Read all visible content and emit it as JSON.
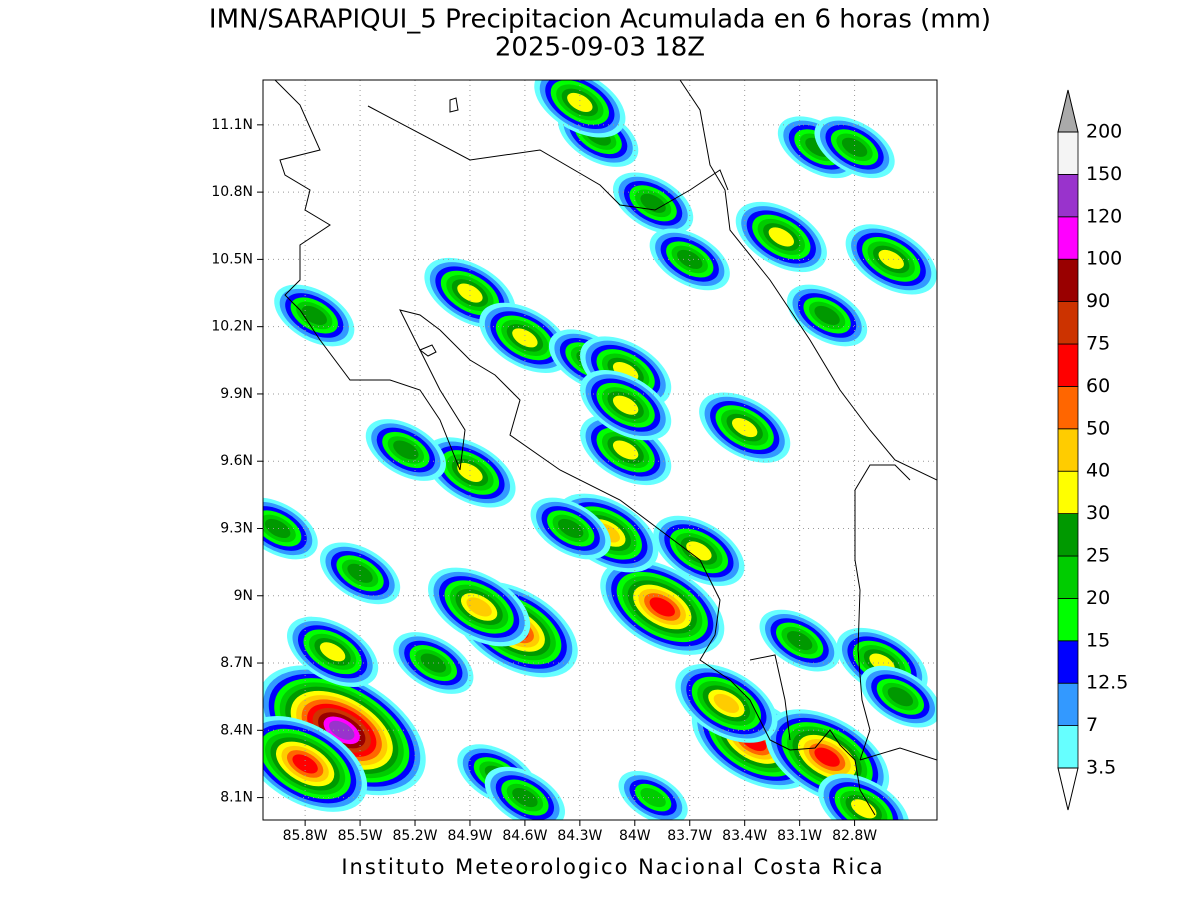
{
  "map": {
    "title": "IMN/SARAPIQUI_5 Precipitacion Acumulada en 6 horas (mm)",
    "subtitle": "2025-09-03 18Z",
    "footer": "Instituto Meteorologico Nacional Costa Rica",
    "lonlim": [
      -86.03,
      -82.35
    ],
    "latlim": [
      8.0,
      11.3
    ],
    "lonticks": [
      {
        "value": -85.8,
        "label": "85.8W"
      },
      {
        "value": -85.5,
        "label": "85.5W"
      },
      {
        "value": -85.2,
        "label": "85.2W"
      },
      {
        "value": -84.9,
        "label": "84.9W"
      },
      {
        "value": -84.6,
        "label": "84.6W"
      },
      {
        "value": -84.3,
        "label": "84.3W"
      },
      {
        "value": -84.0,
        "label": "84W"
      },
      {
        "value": -83.7,
        "label": "83.7W"
      },
      {
        "value": -83.4,
        "label": "83.4W"
      },
      {
        "value": -83.1,
        "label": "83.1W"
      },
      {
        "value": -82.8,
        "label": "82.8W"
      }
    ],
    "latticks": [
      {
        "value": 8.1,
        "label": "8.1N"
      },
      {
        "value": 8.4,
        "label": "8.4N"
      },
      {
        "value": 8.7,
        "label": "8.7N"
      },
      {
        "value": 9.0,
        "label": "9N"
      },
      {
        "value": 9.3,
        "label": "9.3N"
      },
      {
        "value": 9.6,
        "label": "9.6N"
      },
      {
        "value": 9.9,
        "label": "9.9N"
      },
      {
        "value": 10.2,
        "label": "10.2N"
      },
      {
        "value": 10.5,
        "label": "10.5N"
      },
      {
        "value": 10.8,
        "label": "10.8N"
      },
      {
        "value": 11.1,
        "label": "11.1N"
      }
    ],
    "grid": true,
    "colorbar": {
      "levels": [
        3.5,
        7,
        12.5,
        15,
        20,
        25,
        30,
        40,
        50,
        60,
        75,
        90,
        100,
        120,
        150,
        200
      ],
      "colors": [
        "#66ffff",
        "#3399ff",
        "#0000ff",
        "#00ff00",
        "#00cc00",
        "#009900",
        "#ffff00",
        "#ffcc00",
        "#ff6600",
        "#ff0000",
        "#cc3300",
        "#990000",
        "#ff00ff",
        "#9933cc",
        "#f4f4f4"
      ],
      "over_color": "#aaaaaa",
      "under_color": "#ffffff"
    },
    "cells": [
      {
        "lon": -85.6,
        "lat": 8.4,
        "max": 130
      },
      {
        "lon": -85.8,
        "lat": 8.25,
        "max": 65
      },
      {
        "lon": -84.65,
        "lat": 8.85,
        "max": 65
      },
      {
        "lon": -84.85,
        "lat": 8.95,
        "max": 45
      },
      {
        "lon": -83.85,
        "lat": 8.95,
        "max": 65
      },
      {
        "lon": -84.15,
        "lat": 9.28,
        "max": 45
      },
      {
        "lon": -83.35,
        "lat": 8.35,
        "max": 65
      },
      {
        "lon": -82.95,
        "lat": 8.28,
        "max": 65
      },
      {
        "lon": -83.5,
        "lat": 8.52,
        "max": 45
      },
      {
        "lon": -84.9,
        "lat": 9.55,
        "max": 35
      },
      {
        "lon": -85.25,
        "lat": 9.65,
        "max": 27
      },
      {
        "lon": -84.35,
        "lat": 9.3,
        "max": 27
      },
      {
        "lon": -84.05,
        "lat": 9.65,
        "max": 35
      },
      {
        "lon": -83.4,
        "lat": 9.75,
        "max": 35
      },
      {
        "lon": -84.9,
        "lat": 10.35,
        "max": 35
      },
      {
        "lon": -84.6,
        "lat": 10.15,
        "max": 35
      },
      {
        "lon": -84.25,
        "lat": 10.05,
        "max": 27
      },
      {
        "lon": -85.75,
        "lat": 10.25,
        "max": 27
      },
      {
        "lon": -84.05,
        "lat": 10.0,
        "max": 35
      },
      {
        "lon": -84.05,
        "lat": 9.85,
        "max": 35
      },
      {
        "lon": -83.9,
        "lat": 10.75,
        "max": 27
      },
      {
        "lon": -83.7,
        "lat": 10.5,
        "max": 27
      },
      {
        "lon": -84.2,
        "lat": 11.05,
        "max": 25
      },
      {
        "lon": -84.3,
        "lat": 11.2,
        "max": 35
      },
      {
        "lon": -83.0,
        "lat": 11.0,
        "max": 27
      },
      {
        "lon": -82.8,
        "lat": 11.0,
        "max": 27
      },
      {
        "lon": -83.2,
        "lat": 10.6,
        "max": 35
      },
      {
        "lon": -82.95,
        "lat": 10.25,
        "max": 27
      },
      {
        "lon": -82.6,
        "lat": 10.5,
        "max": 35
      },
      {
        "lon": -82.65,
        "lat": 8.7,
        "max": 35
      },
      {
        "lon": -85.5,
        "lat": 9.1,
        "max": 27
      },
      {
        "lon": -85.65,
        "lat": 8.75,
        "max": 35
      },
      {
        "lon": -85.1,
        "lat": 8.7,
        "max": 27
      },
      {
        "lon": -84.75,
        "lat": 8.2,
        "max": 27
      },
      {
        "lon": -82.55,
        "lat": 8.55,
        "max": 27
      },
      {
        "lon": -83.1,
        "lat": 8.8,
        "max": 27
      },
      {
        "lon": -83.65,
        "lat": 9.2,
        "max": 35
      },
      {
        "lon": -85.95,
        "lat": 9.3,
        "max": 27
      },
      {
        "lon": -84.6,
        "lat": 8.1,
        "max": 25
      },
      {
        "lon": -83.9,
        "lat": 8.1,
        "max": 20
      },
      {
        "lon": -82.75,
        "lat": 8.05,
        "max": 30
      }
    ]
  }
}
